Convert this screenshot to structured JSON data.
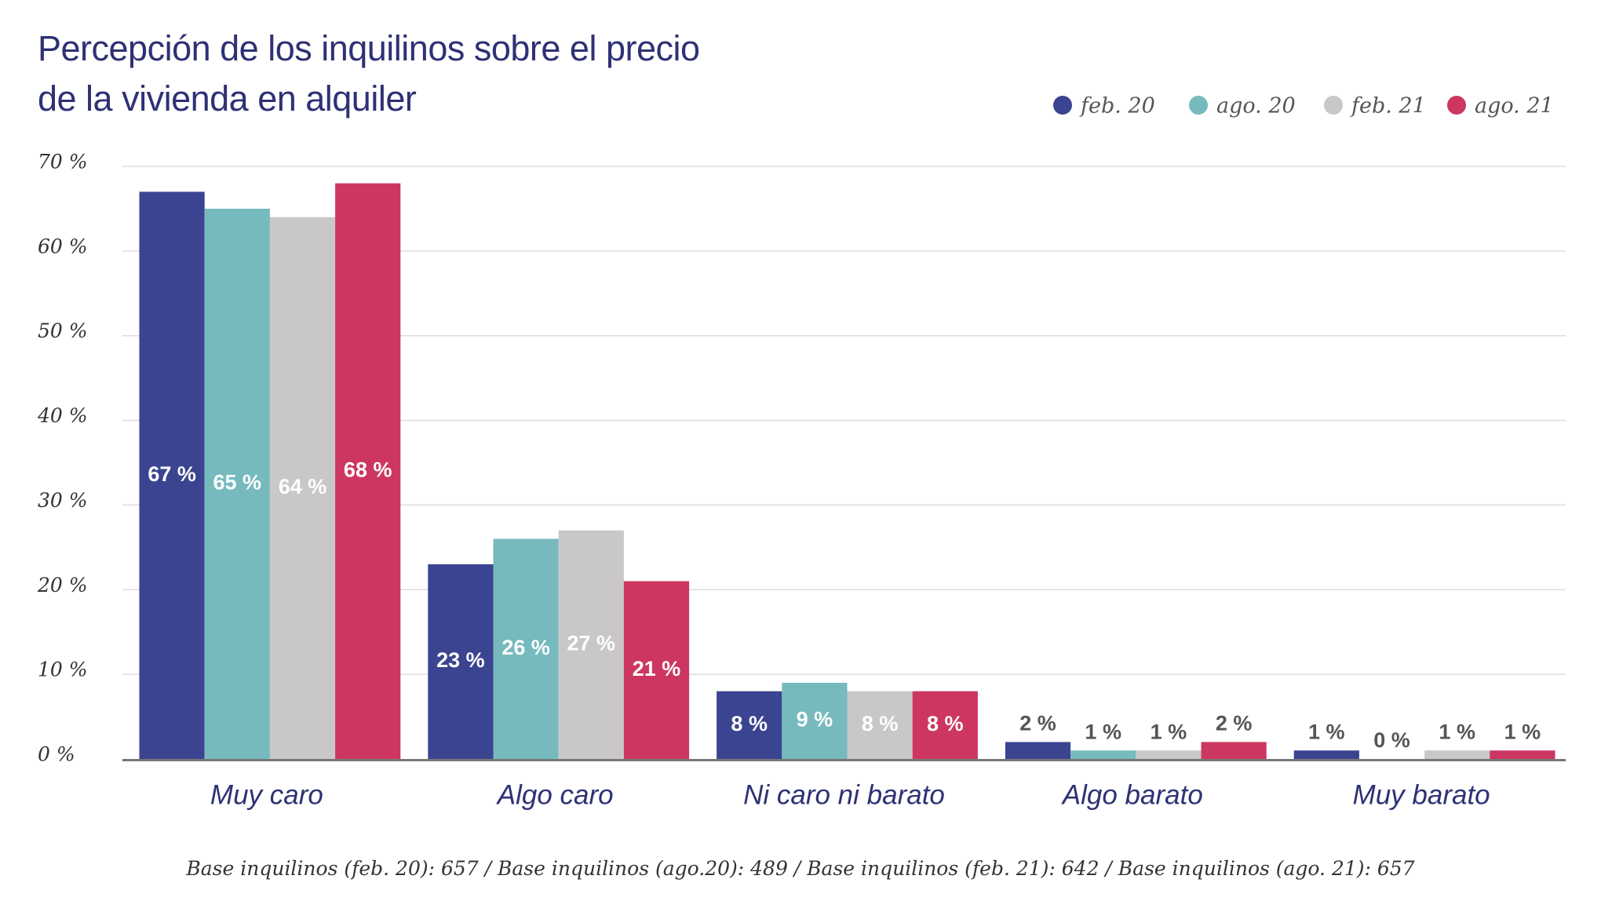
{
  "chart_data": {
    "type": "bar",
    "title": "Percepción de los inquilinos sobre el precio de la vivienda en alquiler",
    "footnote": "Base inquilinos (feb. 20): 657 / Base inquilinos (ago.20): 489 / Base inquilinos (feb. 21): 642 / Base inquilinos (ago. 21): 657",
    "categories": [
      "Muy caro",
      "Algo caro",
      "Ni caro ni barato",
      "Algo barato",
      "Muy barato"
    ],
    "series": [
      {
        "name": "feb. 20",
        "color": "#3b4490",
        "values": [
          67,
          23,
          8,
          2,
          1
        ],
        "value_labels": [
          "67 %",
          "23 %",
          "8 %",
          "2 %",
          "1 %"
        ]
      },
      {
        "name": "ago. 20",
        "color": "#76babd",
        "values": [
          65,
          26,
          9,
          1,
          0
        ],
        "value_labels": [
          "65 %",
          "26 %",
          "9 %",
          "1 %",
          "0 %"
        ]
      },
      {
        "name": "feb. 21",
        "color": "#c9c7ca",
        "values": [
          64,
          27,
          8,
          1,
          1
        ],
        "value_labels": [
          "64 %",
          "27 %",
          "8 %",
          "1 %",
          "1 %"
        ]
      },
      {
        "name": "ago. 21",
        "color": "#cc3660",
        "values": [
          68,
          21,
          8,
          2,
          1
        ],
        "value_labels": [
          "68 %",
          "21 %",
          "8 %",
          "2 %",
          "1 %"
        ]
      }
    ],
    "ylim": [
      0,
      70
    ],
    "yticks": [
      {
        "value": 0,
        "label": "0 %"
      },
      {
        "value": 10,
        "label": "10 %"
      },
      {
        "value": 20,
        "label": "20 %"
      },
      {
        "value": 30,
        "label": "30 %"
      },
      {
        "value": 40,
        "label": "40 %"
      },
      {
        "value": 50,
        "label": "50 %"
      },
      {
        "value": 60,
        "label": "60 %"
      },
      {
        "value": 70,
        "label": "70 %"
      }
    ],
    "grid": true,
    "legend": "top-right"
  }
}
